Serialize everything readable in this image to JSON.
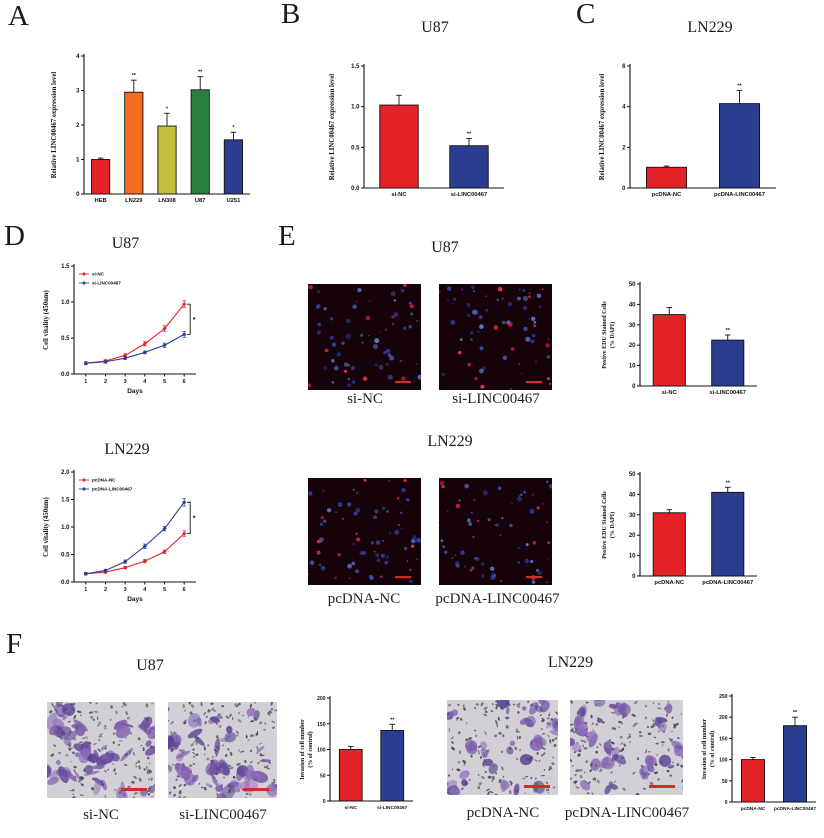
{
  "colors": {
    "red": "#e32228",
    "orange": "#f26c21",
    "olive": "#c6bf3b",
    "green": "#2b7f3e",
    "blue": "#2b3d8f",
    "scale_bar": "#cf2f23"
  },
  "panels": {
    "A": {
      "letter": "A",
      "chart": {
        "type": "bar",
        "ylabel": [
          "Relative LINC00467 expression level"
        ],
        "ylim": [
          0,
          4
        ],
        "yticks": [
          "0",
          "1",
          "2",
          "3",
          "4"
        ],
        "categories": [
          "HEB",
          "LN229",
          "LN308",
          "U87",
          "U251"
        ],
        "values": [
          1.0,
          2.95,
          1.97,
          3.02,
          1.57
        ],
        "errors": [
          0.04,
          0.35,
          0.37,
          0.38,
          0.22
        ],
        "sig": [
          "",
          "**",
          "*",
          "**",
          "*"
        ],
        "colors": [
          "#e32228",
          "#f26c21",
          "#c6bf3b",
          "#2b7f3e",
          "#2b3d8f"
        ],
        "m": {
          "l": 34,
          "r": 8,
          "t": 10,
          "b": 20
        }
      }
    },
    "B": {
      "letter": "B",
      "title": "U87",
      "chart": {
        "type": "bar",
        "ylabel": [
          "Relative LINC00467 expression level"
        ],
        "ylim": [
          0,
          1.5
        ],
        "yticks": [
          "0.0",
          "0.5",
          "1.0",
          "1.5"
        ],
        "categories": [
          "si-NC",
          "si-LINC00467"
        ],
        "values": [
          1.02,
          0.52
        ],
        "errors": [
          0.12,
          0.09
        ],
        "sig": [
          "",
          "**"
        ],
        "colors": [
          "#e32228",
          "#2b3d8f"
        ],
        "m": {
          "l": 36,
          "r": 14,
          "t": 8,
          "b": 20
        }
      }
    },
    "C": {
      "letter": "C",
      "title": "LN229",
      "chart": {
        "type": "bar",
        "ylabel": [
          "Relative LINC00467 expression level"
        ],
        "ylim": [
          0,
          6
        ],
        "yticks": [
          "0",
          "2",
          "4",
          "6"
        ],
        "categories": [
          "pcDNA-NC",
          "pcDNA-LINC00467"
        ],
        "values": [
          1.02,
          4.15
        ],
        "errors": [
          0.06,
          0.65
        ],
        "sig": [
          "",
          "**"
        ],
        "colors": [
          "#e32228",
          "#2b3d8f"
        ],
        "m": {
          "l": 32,
          "r": 14,
          "t": 8,
          "b": 20
        }
      }
    },
    "D": {
      "letter": "D",
      "blocks": [
        {
          "title": "U87",
          "chart": {
            "type": "line",
            "ylabel": [
              "Cell vitality (450nm)"
            ],
            "xlabel": "Days",
            "ylim": [
              0,
              1.5
            ],
            "yticks": [
              "0.0",
              "0.5",
              "1.0",
              "1.5"
            ],
            "x": [
              1,
              2,
              3,
              4,
              5,
              6
            ],
            "series": [
              {
                "name": "si-NC",
                "color": "#e32228",
                "values": [
                  0.15,
                  0.18,
                  0.26,
                  0.42,
                  0.63,
                  0.97
                ],
                "errors": [
                  0.02,
                  0.02,
                  0.02,
                  0.03,
                  0.04,
                  0.05
                ]
              },
              {
                "name": "si-LINC00467",
                "color": "#2b3d8f",
                "values": [
                  0.15,
                  0.17,
                  0.22,
                  0.3,
                  0.4,
                  0.55
                ],
                "errors": [
                  0.02,
                  0.02,
                  0.02,
                  0.02,
                  0.03,
                  0.04
                ]
              }
            ],
            "sig": "*",
            "m": {
              "l": 32,
              "r": 22,
              "t": 6,
              "b": 26
            }
          }
        },
        {
          "title": "LN229",
          "chart": {
            "type": "line",
            "ylabel": [
              "Cell vitality (450nm)"
            ],
            "xlabel": "Days",
            "ylim": [
              0,
              2.0
            ],
            "yticks": [
              "0.0",
              "0.5",
              "1.0",
              "1.5",
              "2.0"
            ],
            "x": [
              1,
              2,
              3,
              4,
              5,
              6
            ],
            "series": [
              {
                "name": "pcDNA-NC",
                "color": "#e32228",
                "values": [
                  0.15,
                  0.18,
                  0.26,
                  0.38,
                  0.55,
                  0.88
                ],
                "errors": [
                  0.02,
                  0.02,
                  0.02,
                  0.03,
                  0.03,
                  0.05
                ]
              },
              {
                "name": "pcDNA-LINC00467",
                "color": "#2b3d8f",
                "values": [
                  0.15,
                  0.21,
                  0.37,
                  0.65,
                  0.97,
                  1.45
                ],
                "errors": [
                  0.02,
                  0.02,
                  0.03,
                  0.04,
                  0.04,
                  0.07
                ]
              }
            ],
            "sig": "*",
            "m": {
              "l": 32,
              "r": 22,
              "t": 6,
              "b": 26
            }
          }
        }
      ]
    },
    "E": {
      "letter": "E",
      "groups": [
        {
          "title": "U87",
          "images": [
            {
              "label": "si-NC",
              "kind": "fluorescence"
            },
            {
              "label": "si-LINC00467",
              "kind": "fluorescence"
            }
          ],
          "chart": {
            "type": "bar",
            "ylabel": [
              "Postive EDU Stained Cells",
              "(% DAPI)"
            ],
            "ylim": [
              0,
              50
            ],
            "yticks": [
              "0",
              "10",
              "20",
              "30",
              "40",
              "50"
            ],
            "categories": [
              "si-NC",
              "si-LINC00467"
            ],
            "values": [
              35,
              22.5
            ],
            "errors": [
              3.5,
              2.5
            ],
            "sig": [
              "",
              "**"
            ],
            "colors": [
              "#e32228",
              "#2b3d8f"
            ],
            "m": {
              "l": 40,
              "r": 48,
              "t": 8,
              "b": 20
            }
          }
        },
        {
          "title": "LN229",
          "images": [
            {
              "label": "pcDNA-NC",
              "kind": "fluorescence"
            },
            {
              "label": "pcDNA-LINC00467",
              "kind": "fluorescence"
            }
          ],
          "chart": {
            "type": "bar",
            "ylabel": [
              "Postive EDU Stained Cells",
              "(% DAPI)"
            ],
            "ylim": [
              0,
              50
            ],
            "yticks": [
              "0",
              "10",
              "20",
              "30",
              "40",
              "50"
            ],
            "categories": [
              "pcDNA-NC",
              "pcDNA-LINC00467"
            ],
            "values": [
              31,
              41
            ],
            "errors": [
              1.5,
              2.5
            ],
            "sig": [
              "",
              "**"
            ],
            "colors": [
              "#e32228",
              "#2b3d8f"
            ],
            "m": {
              "l": 40,
              "r": 48,
              "t": 8,
              "b": 20
            }
          }
        }
      ]
    },
    "F": {
      "letter": "F",
      "groups": [
        {
          "title": "U87",
          "images": [
            {
              "label": "si-NC",
              "kind": "transwell",
              "density": "high"
            },
            {
              "label": "si-LINC00467",
              "kind": "transwell",
              "density": "high"
            }
          ],
          "chart": {
            "type": "bar",
            "ylabel": [
              "Invasion of cell number",
              "(% of control)"
            ],
            "ylim": [
              0,
              200
            ],
            "yticks": [
              "0",
              "50",
              "100",
              "150",
              "200"
            ],
            "categories": [
              "si-NC",
              "si-LINC00467"
            ],
            "values": [
              100,
              137
            ],
            "errors": [
              6,
              12
            ],
            "sig": [
              "",
              "**"
            ],
            "colors": [
              "#e32228",
              "#2b3d8f"
            ],
            "m": {
              "l": 32,
              "r": 10,
              "t": 8,
              "b": 24
            }
          }
        },
        {
          "title": "LN229",
          "images": [
            {
              "label": "pcDNA-NC",
              "kind": "transwell",
              "density": "medium"
            },
            {
              "label": "pcDNA-LINC00467",
              "kind": "transwell",
              "density": "medium"
            }
          ],
          "chart": {
            "type": "bar",
            "ylabel": [
              "Invasion of cell number",
              "(% of control)"
            ],
            "ylim": [
              0,
              250
            ],
            "yticks": [
              "0",
              "50",
              "100",
              "150",
              "200",
              "250"
            ],
            "categories": [
              "pcDNA-NC",
              "pcDNA-LINC00467"
            ],
            "values": [
              100,
              180
            ],
            "errors": [
              5,
              20
            ],
            "sig": [
              "",
              "**"
            ],
            "colors": [
              "#e32228",
              "#2b3d8f"
            ],
            "m": {
              "l": 32,
              "r": 8,
              "t": 8,
              "b": 24
            }
          }
        }
      ]
    }
  }
}
